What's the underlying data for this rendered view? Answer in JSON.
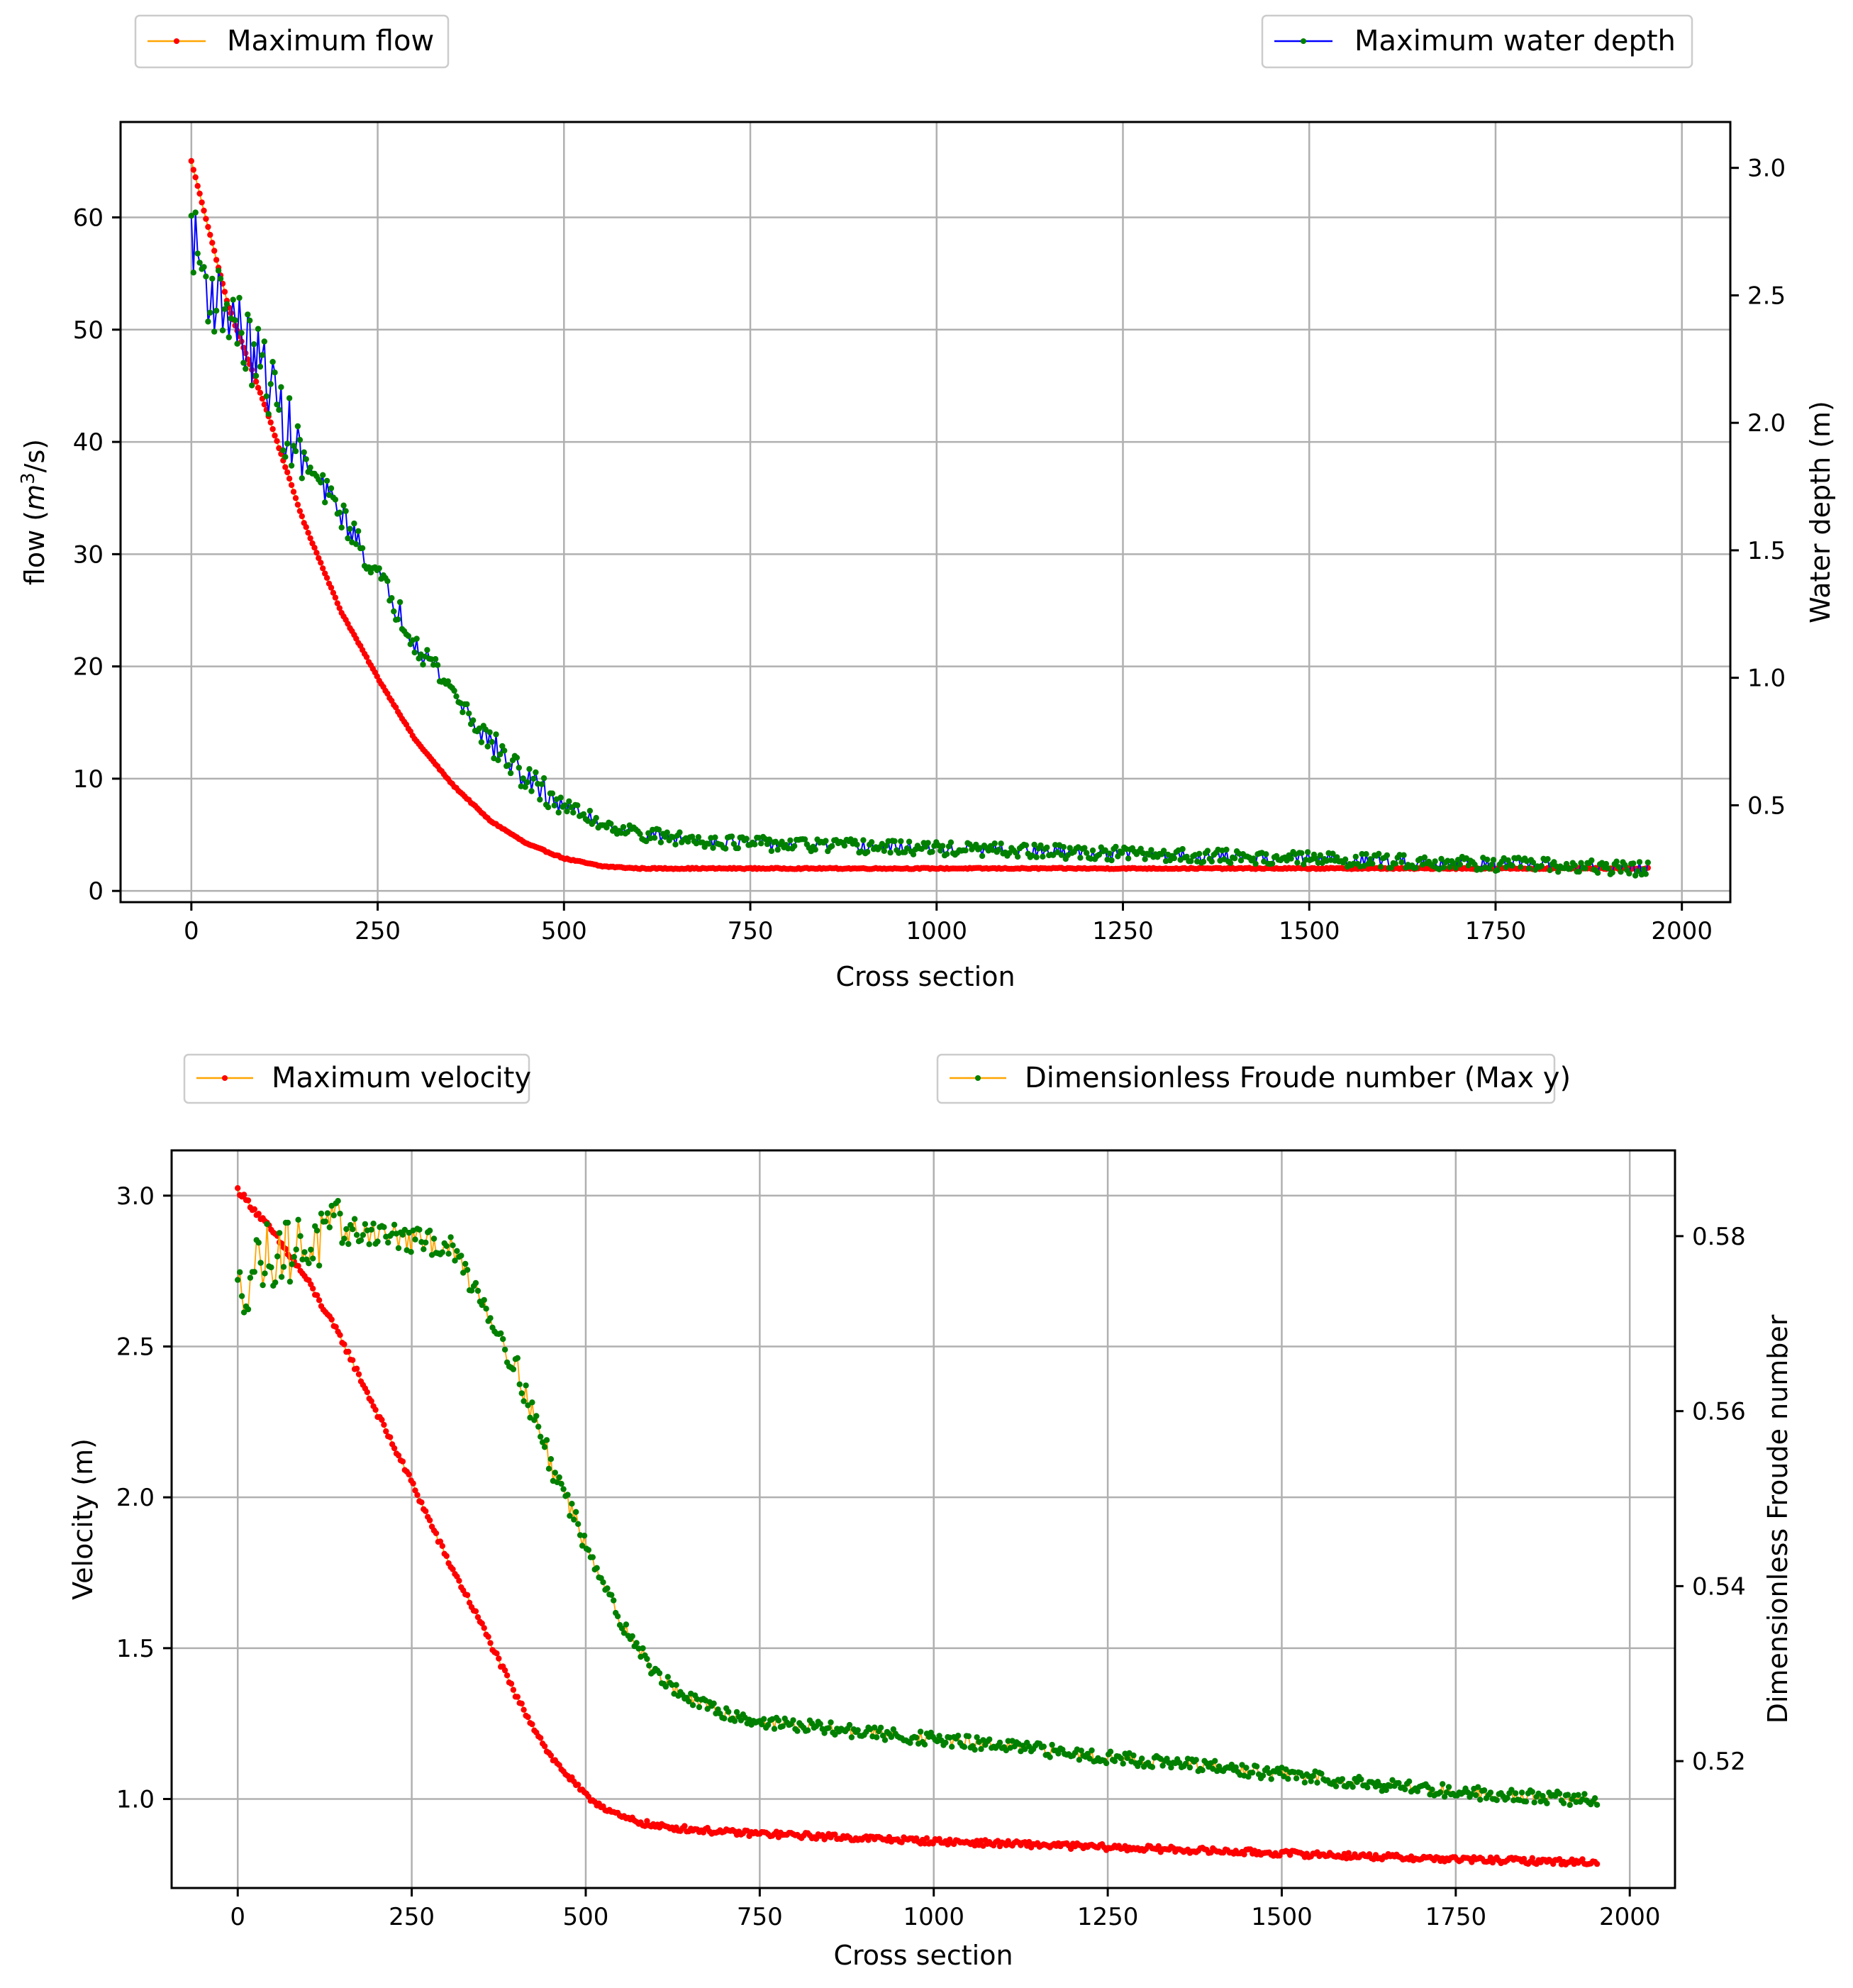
{
  "chart_data": [
    {
      "type": "line",
      "xlabel": "Cross section",
      "ylabel": "flow (m³/s)",
      "ylabel_prefix": "flow (",
      "ylabel_var": "m",
      "ylabel_sup": "3",
      "ylabel_suffix": "/s)",
      "y2label": "Water depth (m)",
      "xlim": [
        -95,
        2065
      ],
      "ylim": [
        -1,
        68.5
      ],
      "y2lim": [
        0.12,
        3.18
      ],
      "xticks": [
        0,
        250,
        500,
        750,
        1000,
        1250,
        1500,
        1750,
        2000
      ],
      "yticks": [
        0,
        10,
        20,
        30,
        40,
        50,
        60
      ],
      "y2ticks": [
        0.5,
        1.0,
        1.5,
        2.0,
        2.5,
        3.0
      ],
      "xtick_labels": [
        "0",
        "250",
        "500",
        "750",
        "1000",
        "1250",
        "1500",
        "1750",
        "2000"
      ],
      "ytick_labels": [
        "0",
        "10",
        "20",
        "30",
        "40",
        "50",
        "60"
      ],
      "y2tick_labels": [
        "0.5",
        "1.0",
        "1.5",
        "2.0",
        "2.5",
        "3.0"
      ],
      "grid": true,
      "legend": [
        {
          "label": "Maximum flow",
          "line_color": "#ffa500",
          "marker_color": "#ff0000",
          "placement": "top-left"
        },
        {
          "label": "Maximum water depth",
          "line_color": "#0000ff",
          "marker_color": "#008000",
          "placement": "top-right"
        }
      ],
      "series": [
        {
          "name": "Maximum flow",
          "axis": "left",
          "line_color": "#ffa500",
          "marker_color": "#ff0000",
          "x": [
            0,
            50,
            100,
            150,
            200,
            250,
            300,
            350,
            400,
            450,
            500,
            550,
            600,
            650,
            700,
            800,
            1000,
            1250,
            1500,
            1750,
            1955
          ],
          "values": [
            65,
            52,
            43,
            33,
            25,
            19,
            13.5,
            9.5,
            6.3,
            4.2,
            2.9,
            2.2,
            2.0,
            2.0,
            2.0,
            2.0,
            2.0,
            2.0,
            2.0,
            2.0,
            2.0
          ]
        },
        {
          "name": "Maximum water depth",
          "axis": "right",
          "line_color": "#0000ff",
          "marker_color": "#008000",
          "x": [
            0,
            25,
            50,
            75,
            100,
            125,
            150,
            200,
            250,
            300,
            350,
            400,
            450,
            500,
            550,
            600,
            650,
            700,
            750,
            1000,
            1250,
            1500,
            1750,
            1955
          ],
          "values": [
            2.75,
            2.5,
            2.45,
            2.3,
            2.2,
            2.0,
            1.85,
            1.65,
            1.4,
            1.15,
            0.95,
            0.75,
            0.6,
            0.5,
            0.43,
            0.39,
            0.37,
            0.36,
            0.35,
            0.33,
            0.31,
            0.29,
            0.27,
            0.25
          ]
        }
      ]
    },
    {
      "type": "line",
      "xlabel": "Cross section",
      "ylabel": "Velocity (m)",
      "y2label": "Dimensionless Froude number",
      "xlim": [
        -95,
        2065
      ],
      "ylim": [
        0.705,
        3.15
      ],
      "y2lim": [
        0.5055,
        0.5898
      ],
      "xticks": [
        0,
        250,
        500,
        750,
        1000,
        1250,
        1500,
        1750,
        2000
      ],
      "yticks": [
        1.0,
        1.5,
        2.0,
        2.5,
        3.0
      ],
      "y2ticks": [
        0.52,
        0.54,
        0.56,
        0.58
      ],
      "xtick_labels": [
        "0",
        "250",
        "500",
        "750",
        "1000",
        "1250",
        "1500",
        "1750",
        "2000"
      ],
      "ytick_labels": [
        "1.0",
        "1.5",
        "2.0",
        "2.5",
        "3.0"
      ],
      "y2tick_labels": [
        "0.52",
        "0.54",
        "0.56",
        "0.58"
      ],
      "grid": true,
      "legend": [
        {
          "label": "Maximum velocity",
          "line_color": "#ffa500",
          "marker_color": "#ff0000",
          "placement": "top-left"
        },
        {
          "label": "Dimensionless Froude number (Max y)",
          "line_color": "#ffa500",
          "marker_color": "#008000",
          "placement": "top-right"
        }
      ],
      "series": [
        {
          "name": "Maximum velocity",
          "axis": "left",
          "line_color": "#ffa500",
          "marker_color": "#ff0000",
          "x": [
            0,
            50,
            100,
            150,
            200,
            250,
            300,
            350,
            400,
            450,
            500,
            550,
            600,
            650,
            700,
            750,
            1000,
            1250,
            1500,
            1750,
            1955
          ],
          "values": [
            3.02,
            2.88,
            2.72,
            2.52,
            2.28,
            2.05,
            1.8,
            1.58,
            1.34,
            1.14,
            1.01,
            0.94,
            0.91,
            0.9,
            0.89,
            0.885,
            0.86,
            0.84,
            0.82,
            0.8,
            0.79
          ]
        },
        {
          "name": "Dimensionless Froude number (Max y)",
          "axis": "right",
          "line_color": "#ffa500",
          "marker_color": "#008000",
          "x": [
            0,
            25,
            50,
            100,
            150,
            200,
            250,
            300,
            320,
            350,
            400,
            450,
            500,
            550,
            600,
            650,
            700,
            750,
            1000,
            1250,
            1500,
            1750,
            1955
          ],
          "values": [
            0.573,
            0.577,
            0.578,
            0.579,
            0.5805,
            0.5805,
            0.5795,
            0.579,
            0.577,
            0.573,
            0.565,
            0.554,
            0.545,
            0.536,
            0.53,
            0.527,
            0.5255,
            0.5245,
            0.5225,
            0.5205,
            0.5185,
            0.5165,
            0.5155
          ]
        }
      ]
    }
  ]
}
